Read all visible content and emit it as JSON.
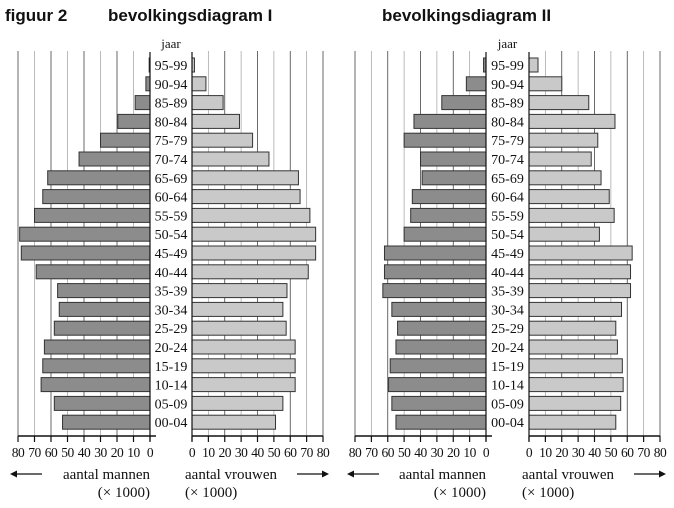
{
  "header": {
    "figure_label": "figuur 2",
    "titles": [
      "bevolkingsdiagram I",
      "bevolkingsdiagram II"
    ]
  },
  "chart_data": [
    {
      "type": "bar",
      "subtype": "population-pyramid",
      "title": "bevolkingsdiagram I",
      "category_label": "jaar",
      "categories": [
        "95-99",
        "90-94",
        "85-89",
        "80-84",
        "75-79",
        "70-74",
        "65-69",
        "60-64",
        "55-59",
        "50-54",
        "45-49",
        "40-44",
        "35-39",
        "30-34",
        "25-29",
        "20-24",
        "15-19",
        "10-14",
        "05-09",
        "00-04"
      ],
      "series": [
        {
          "name": "aantal mannen",
          "side": "left",
          "color": "#8c8c8c",
          "values": [
            0.5,
            2.5,
            9,
            19.5,
            30,
            43,
            62,
            65,
            70,
            79,
            78,
            69,
            56,
            55,
            58,
            64,
            65,
            66,
            58,
            53
          ]
        },
        {
          "name": "aantal vrouwen",
          "side": "right",
          "color": "#c9c9c9",
          "values": [
            1.5,
            8.5,
            19,
            29,
            37,
            47,
            65,
            66,
            72,
            75.5,
            75.5,
            71,
            58,
            55.5,
            57.5,
            63,
            63,
            63,
            55.5,
            51
          ]
        }
      ],
      "xlim": [
        0,
        80
      ],
      "ticks": [
        "0",
        "10",
        "20",
        "30",
        "40",
        "50",
        "60",
        "70",
        "80"
      ],
      "xlabel_left": "aantal mannen",
      "xlabel_right": "aantal vrouwen",
      "unit": "(× 1000)",
      "grid": true
    },
    {
      "type": "bar",
      "subtype": "population-pyramid",
      "title": "bevolkingsdiagram II",
      "category_label": "jaar",
      "categories": [
        "95-99",
        "90-94",
        "85-89",
        "80-84",
        "75-79",
        "70-74",
        "65-69",
        "60-64",
        "55-59",
        "50-54",
        "45-49",
        "40-44",
        "35-39",
        "30-34",
        "25-29",
        "20-24",
        "15-19",
        "10-14",
        "05-09",
        "00-04"
      ],
      "series": [
        {
          "name": "aantal mannen",
          "side": "left",
          "color": "#8c8c8c",
          "values": [
            1.5,
            12,
            27,
            44,
            50,
            40,
            39,
            45,
            46,
            50,
            62,
            62,
            63,
            57.5,
            54,
            55,
            58.5,
            59.5,
            57.5,
            55
          ]
        },
        {
          "name": "aantal vrouwen",
          "side": "right",
          "color": "#c9c9c9",
          "values": [
            5.5,
            20,
            36.5,
            52.5,
            42,
            38,
            44,
            49,
            52,
            43,
            63,
            62,
            62,
            56.5,
            53,
            54,
            57,
            57.5,
            56,
            53
          ]
        }
      ],
      "xlim": [
        0,
        80
      ],
      "ticks": [
        "0",
        "10",
        "20",
        "30",
        "40",
        "50",
        "60",
        "70",
        "80"
      ],
      "xlabel_left": "aantal mannen",
      "xlabel_right": "aantal vrouwen",
      "unit": "(× 1000)",
      "grid": true
    }
  ]
}
